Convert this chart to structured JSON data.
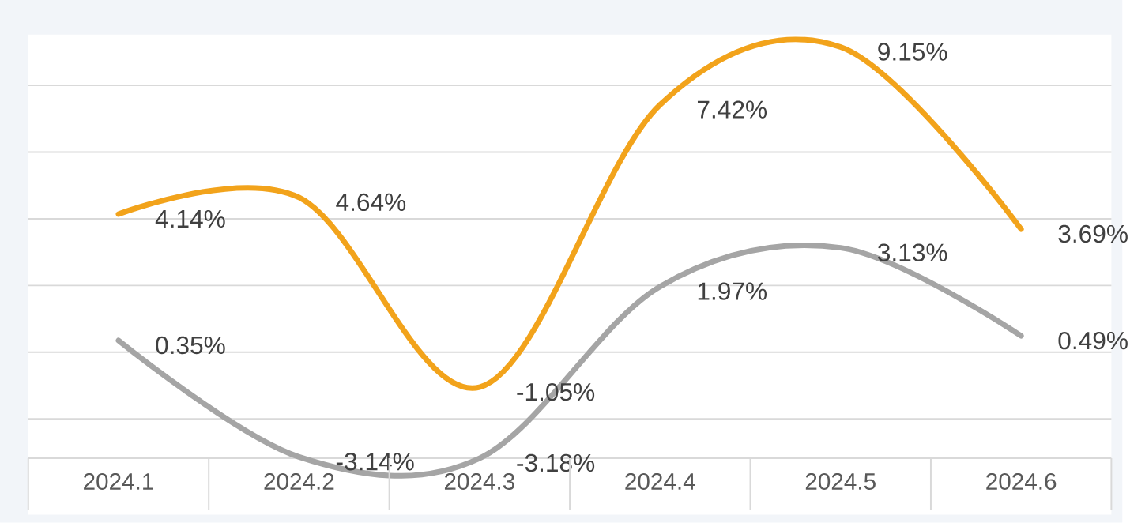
{
  "chart_data": {
    "type": "line",
    "categories": [
      "2024.1",
      "2024.2",
      "2024.3",
      "2024.4",
      "2024.5",
      "2024.6"
    ],
    "series": [
      {
        "color": "#f2a31b",
        "values": [
          4.14,
          4.64,
          -1.05,
          7.42,
          9.15,
          3.69
        ],
        "value_labels": [
          "4.14%",
          "4.64%",
          "-1.05%",
          "7.42%",
          "9.15%",
          "3.69%"
        ]
      },
      {
        "color": "#a5a5a5",
        "values": [
          0.35,
          -3.14,
          -3.18,
          1.97,
          3.13,
          0.49
        ],
        "value_labels": [
          "0.35%",
          "-3.14%",
          "-3.18%",
          "1.97%",
          "3.13%",
          "0.49%"
        ]
      }
    ],
    "grid": "y",
    "tick_labels": "x",
    "marker": "none",
    "line_style": "solid"
  }
}
